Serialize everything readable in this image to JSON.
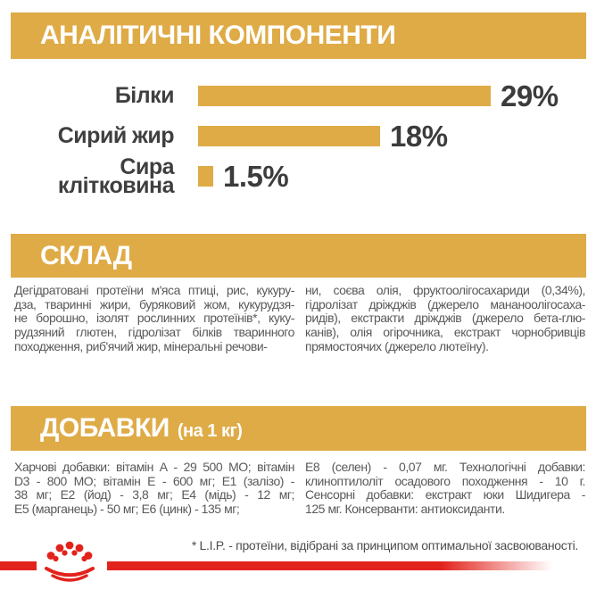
{
  "colors": {
    "gold": "#dfab46",
    "red": "#e2231c",
    "text_dark": "#3c3c3c",
    "text_body": "#595959"
  },
  "sections": {
    "analytical": {
      "title": "АНАЛІТИЧНІ КОМПОНЕНТИ"
    },
    "composition": {
      "title": "СКЛАД",
      "col_left": "Дегідратовані протеїни м'яса птиці, рис, кукуру-\nдза, тваринні жири, буряковий жом, кукурудзя-\nне борошно, ізолят рослинних протеїнів*, куку-\nрудзяний глютен, гідролізат білків тваринного\nпоходження, риб'ячий жир, мінеральні речови-",
      "col_right": "ни, соєва олія, фруктоолігосахариди (0,34%),\nгідролізат дріжджів (джерело мананоолігосаха-\nридів), екстракти дріжджів (джерело бета-глю-\nканів), олія огірочника, екстракт чорнобривців\nпрямостоячих (джерело лютеїну)."
    },
    "additives": {
      "title": "ДОБАВКИ",
      "subtitle": "(на 1 кг)",
      "col_left": "Харчові добавки: вітамін А - 29 500 МО; вітамін\nD3 - 800 МО; вітамін Е - 600 мг; Е1 (залізо) -\n38 мг; Е2 (йод) - 3,8 мг; Е4 (мідь) - 12 мг;\nЕ5 (марганець) - 50 мг; Е6 (цинк) - 135 мг;",
      "col_right": "Е8 (селен) - 0,07 мг. Технологічні добавки:\nклиноптилоліт осадового походження - 10 г.\nСенсорні добавки: екстракт юки Шидигера -\n125 мг. Консерванти: антиоксиданти."
    }
  },
  "chart_data": {
    "type": "bar",
    "orientation": "horizontal",
    "title": "АНАЛІТИЧНІ КОМПОНЕНТИ",
    "categories": [
      "Білки",
      "Сирий жир",
      "Сира\nклітковина"
    ],
    "values": [
      29,
      18,
      1.5
    ],
    "value_labels": [
      "29%",
      "18%",
      "1.5%"
    ],
    "unit": "%",
    "xlim": [
      0,
      29
    ],
    "grid": false,
    "legend": false,
    "bar_color": "#dfab46"
  },
  "footnote": "* L.I.P. - протеїни, відібрані за принципом оптимальної засвоюваності.",
  "logo": {
    "name": "royal-canin-crown"
  }
}
